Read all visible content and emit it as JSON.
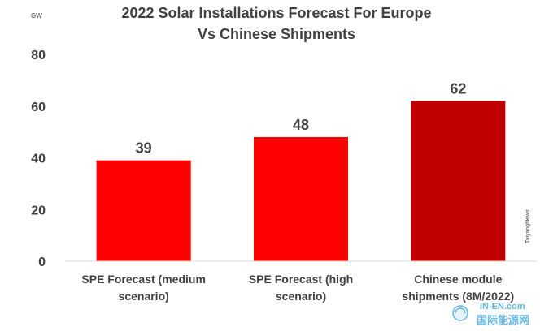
{
  "chart_data": {
    "type": "bar",
    "title_lines": [
      "2022 Solar Installations Forecast For Europe",
      "Vs Chinese Shipments"
    ],
    "unit": "GW",
    "categories": [
      [
        "SPE Forecast (medium",
        "scenario)"
      ],
      [
        "SPE Forecast (high",
        "scenario)"
      ],
      [
        "Chinese module",
        "shipments (8M/2022)"
      ]
    ],
    "values": [
      39,
      48,
      62
    ],
    "value_labels": [
      "39",
      "48",
      "62"
    ],
    "bar_colors": [
      "#ff0000",
      "#ff0000",
      "#c00000"
    ],
    "ylim": [
      0,
      80
    ],
    "yticks": [
      0,
      20,
      40,
      60,
      80
    ],
    "ytick_labels": [
      "0",
      "20",
      "40",
      "60",
      "80"
    ],
    "grid": false,
    "legend": "none",
    "source": "TaiyangNews"
  },
  "watermark": {
    "domain_text": "IN-EN.com",
    "cn_text": "国际能源网"
  }
}
